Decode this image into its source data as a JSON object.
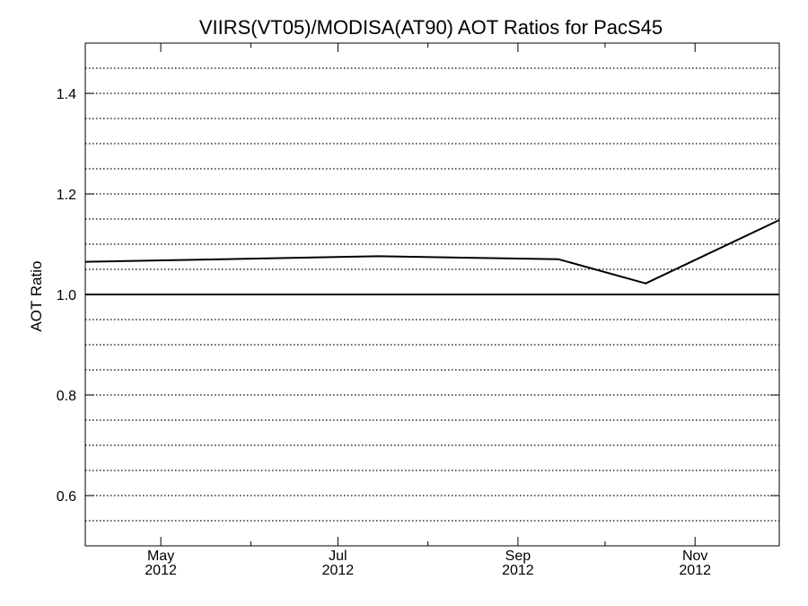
{
  "chart_data": {
    "type": "line",
    "title": "VIIRS(VT05)/MODISA(AT90)  AOT Ratios for PacS45",
    "xlabel": "",
    "ylabel": "AOT Ratio",
    "xlim": [
      "2012-04-05",
      "2012-11-30"
    ],
    "ylim": [
      0.5,
      1.5
    ],
    "yticks": [
      {
        "value": 0.6,
        "label": "0.6"
      },
      {
        "value": 0.8,
        "label": "0.8"
      },
      {
        "value": 1.0,
        "label": "1.0"
      },
      {
        "value": 1.2,
        "label": "1.2"
      },
      {
        "value": 1.4,
        "label": "1.4"
      }
    ],
    "ygrid": [
      0.55,
      0.6,
      0.65,
      0.7,
      0.75,
      0.8,
      0.85,
      0.9,
      0.95,
      1.05,
      1.1,
      1.15,
      1.2,
      1.25,
      1.3,
      1.35,
      1.4,
      1.45
    ],
    "xticks_major": [
      {
        "date": "2012-05-01",
        "month": "May",
        "year": "2012"
      },
      {
        "date": "2012-07-01",
        "month": "Jul",
        "year": "2012"
      },
      {
        "date": "2012-09-01",
        "month": "Sep",
        "year": "2012"
      },
      {
        "date": "2012-11-01",
        "month": "Nov",
        "year": "2012"
      }
    ],
    "xticks_minor": [
      "2012-06-01",
      "2012-08-01",
      "2012-10-01"
    ],
    "reference_line": 1.0,
    "grid": true,
    "series": [
      {
        "x": [
          "2012-04-05",
          "2012-07-15",
          "2012-09-15",
          "2012-10-15",
          "2012-11-30"
        ],
        "y": [
          1.065,
          1.076,
          1.07,
          1.022,
          1.148
        ]
      }
    ]
  }
}
